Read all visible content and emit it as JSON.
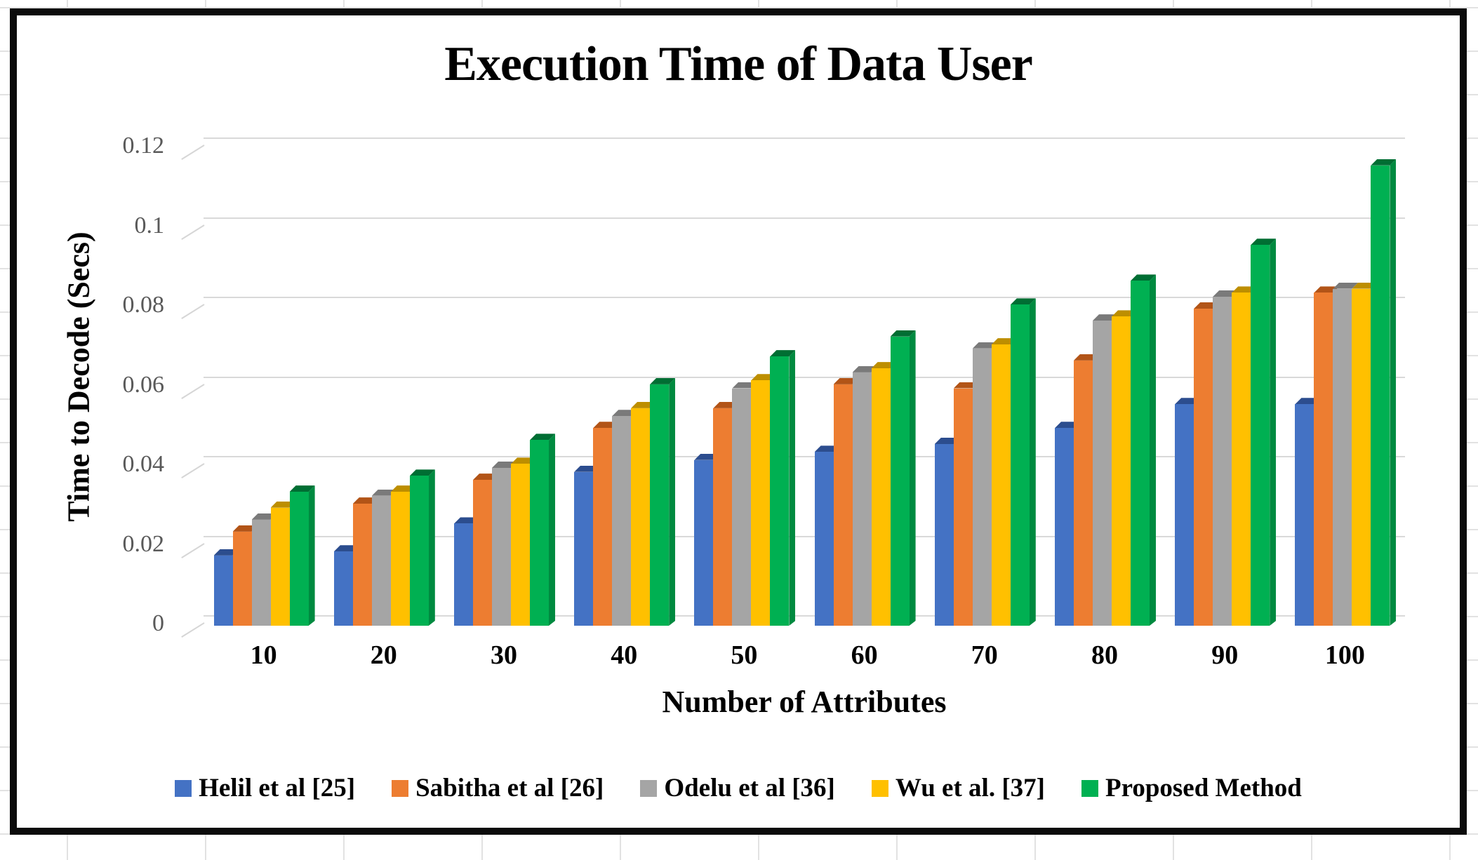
{
  "chart_data": {
    "type": "bar",
    "style": "3d-clustered-column",
    "title": "Execution Time of Data User",
    "xlabel": "Number of Attributes",
    "ylabel": "Time to Decode (Secs)",
    "categories": [
      "10",
      "20",
      "30",
      "40",
      "50",
      "60",
      "70",
      "80",
      "90",
      "100"
    ],
    "series": [
      {
        "name": "Helil et al [25]",
        "color": "#4472C4",
        "cap_color": "#2c4d8e",
        "side_color": "#35599f",
        "values": [
          0.015,
          0.016,
          0.023,
          0.036,
          0.039,
          0.041,
          0.043,
          0.047,
          0.053,
          0.053
        ]
      },
      {
        "name": "Sabitha et al [26]",
        "color": "#ED7D31",
        "cap_color": "#b25417",
        "side_color": "#c45e1e",
        "values": [
          0.021,
          0.028,
          0.034,
          0.047,
          0.052,
          0.058,
          0.057,
          0.064,
          0.077,
          0.081
        ]
      },
      {
        "name": "Odelu et al [36]",
        "color": "#A5A5A5",
        "cap_color": "#7a7a7a",
        "side_color": "#8a8a8a",
        "values": [
          0.024,
          0.03,
          0.037,
          0.05,
          0.057,
          0.061,
          0.067,
          0.074,
          0.08,
          0.082
        ]
      },
      {
        "name": "Wu et al. [37]",
        "color": "#FFC000",
        "cap_color": "#bd8e00",
        "side_color": "#cf9c00",
        "values": [
          0.027,
          0.031,
          0.038,
          0.052,
          0.059,
          0.062,
          0.068,
          0.075,
          0.081,
          0.082
        ]
      },
      {
        "name": "Proposed Method",
        "color": "#00B052",
        "cap_color": "#006e33",
        "side_color": "#008a40",
        "values": [
          0.031,
          0.035,
          0.044,
          0.058,
          0.065,
          0.07,
          0.078,
          0.084,
          0.093,
          0.113
        ]
      }
    ],
    "ylim": [
      0,
      0.12
    ],
    "ytick_step": 0.02,
    "ytick_labels": [
      "0",
      "0.02",
      "0.04",
      "0.06",
      "0.08",
      "0.1",
      "0.12"
    ],
    "grid": true,
    "gridline_color": "#d9d9d9",
    "legend_position": "bottom"
  }
}
